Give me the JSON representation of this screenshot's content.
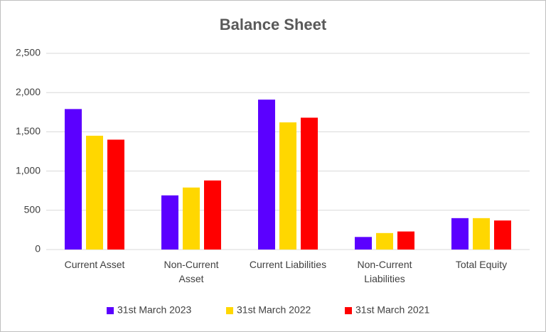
{
  "chart_data": {
    "type": "bar",
    "title": "Balance Sheet",
    "categories": [
      "Current Asset",
      "Non-Current Asset",
      "Current Liabilities",
      "Non-Current Liabilities",
      "Total Equity"
    ],
    "series": [
      {
        "name": "31st March 2023",
        "color": "#5b00ff",
        "values": [
          1790,
          690,
          1910,
          160,
          400
        ]
      },
      {
        "name": "31st March 2022",
        "color": "#ffd700",
        "values": [
          1450,
          790,
          1620,
          210,
          400
        ]
      },
      {
        "name": "31st March 2021",
        "color": "#ff0000",
        "values": [
          1400,
          880,
          1680,
          230,
          370
        ]
      }
    ],
    "ylim": [
      0,
      2500
    ],
    "yticks": [
      0,
      500,
      {
        "value": 1000,
        "label": "1,000"
      },
      {
        "value": 1500,
        "label": "1,500"
      },
      {
        "value": 2000,
        "label": "2,000"
      },
      {
        "value": 2500,
        "label": "2,500"
      }
    ],
    "grid": true,
    "legend": "bottom"
  }
}
